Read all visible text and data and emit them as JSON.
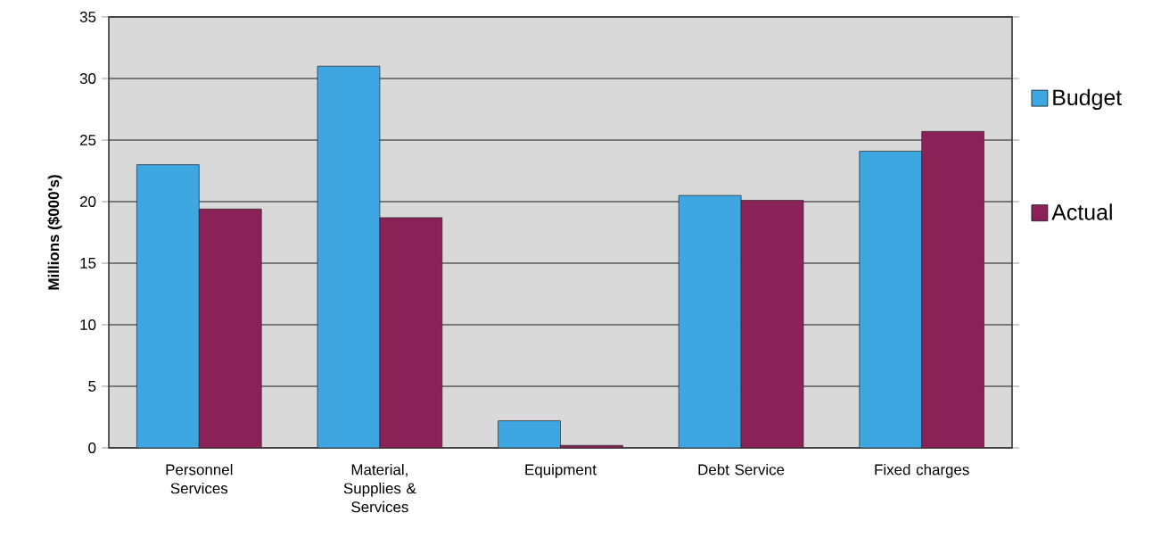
{
  "chart_data": {
    "type": "bar",
    "ylabel": "Millions ($000's)",
    "categories": [
      "Personnel Services",
      "Material, Supplies & Services",
      "Equipment",
      "Debt Service",
      "Fixed charges"
    ],
    "series": [
      {
        "name": "Budget",
        "color": "#3ea6e0",
        "values": [
          23.0,
          31.0,
          2.2,
          20.5,
          24.1
        ]
      },
      {
        "name": "Actual",
        "color": "#8b2257",
        "values": [
          19.4,
          18.7,
          0.2,
          20.1,
          25.7
        ]
      }
    ],
    "ylim": [
      0,
      35
    ],
    "yticks": [
      0,
      5,
      10,
      15,
      20,
      25,
      30,
      35
    ],
    "grid": "y",
    "legend": "right"
  }
}
